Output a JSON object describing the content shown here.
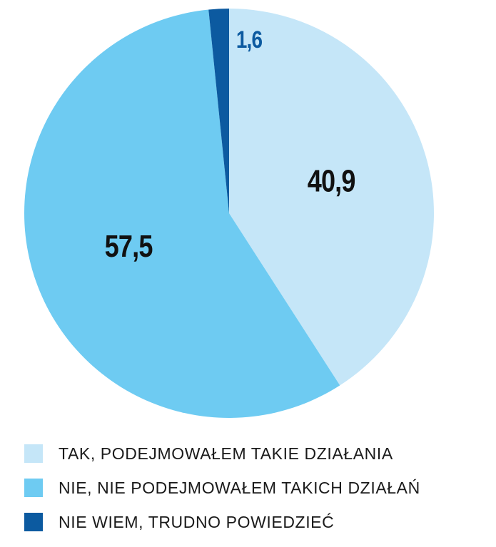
{
  "chart_data": {
    "type": "pie",
    "slices": [
      {
        "label": "TAK, PODEJMOWAŁEM TAKIE DZIAŁANIA",
        "value": 40.9,
        "display": "40,9",
        "color": "#c5e6f8",
        "label_color": "#111111"
      },
      {
        "label": "NIE, NIE PODEJMOWAŁEM TAKICH DZIAŁAŃ",
        "value": 57.5,
        "display": "57,5",
        "color": "#6ecbf2",
        "label_color": "#111111"
      },
      {
        "label": "NIE WIEM, TRUDNO POWIEDZIEĆ",
        "value": 1.6,
        "display": "1,6",
        "color": "#0c5aa0",
        "label_color": "#0c5aa0"
      }
    ],
    "start": "top",
    "direction": "clockwise",
    "legend_position": "bottom-left"
  }
}
